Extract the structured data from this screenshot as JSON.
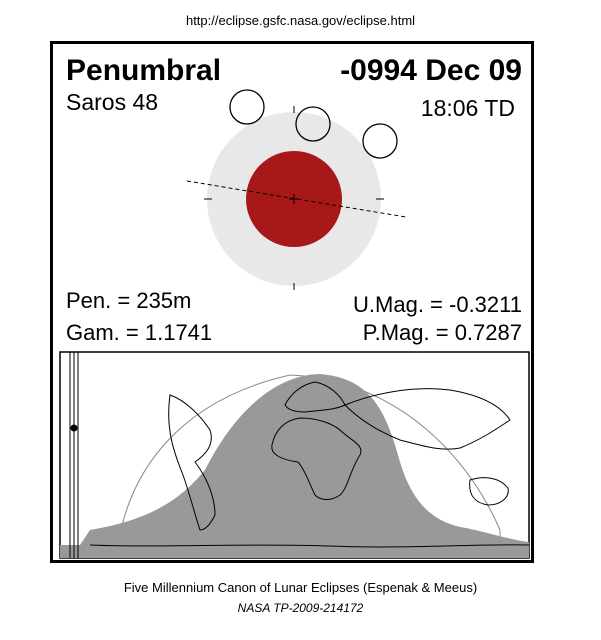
{
  "header": {
    "url": "http://eclipse.gsfc.nasa.gov/eclipse.html"
  },
  "eclipse": {
    "type": "Penumbral",
    "date": "-0994 Dec 09",
    "saros": "Saros  48",
    "time": "18:06 TD",
    "pen_duration": "Pen. = 235m",
    "gamma": "Gam. = 1.1741",
    "umbral_mag": "U.Mag. = -0.3211",
    "penumbral_mag": "P.Mag. = 0.7287"
  },
  "colors": {
    "umbra": "#a81818",
    "penumbra": "#e8e8e8",
    "visible_region": "#999999",
    "night_outline": "#f0f0f0"
  },
  "footer": {
    "canon": "Five Millennium Canon of Lunar Eclipses (Espenak & Meeus)",
    "publication": "NASA TP-2009-214172"
  }
}
